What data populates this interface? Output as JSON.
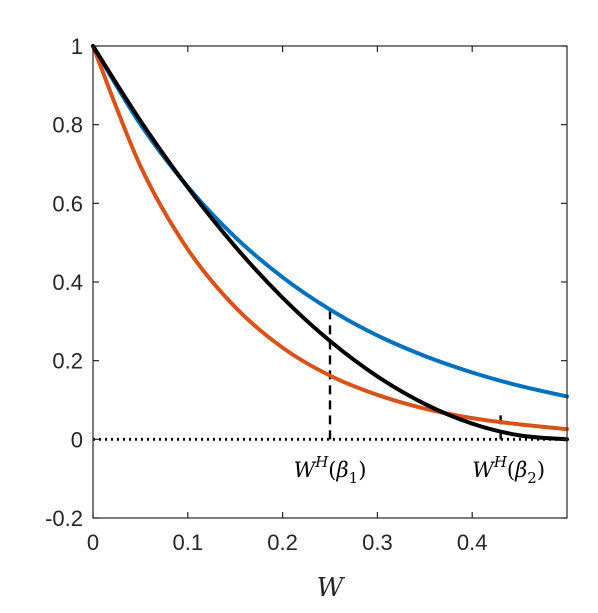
{
  "chart_data": {
    "type": "line",
    "title": "",
    "xlabel": "W",
    "ylabel": "",
    "xlim": [
      0,
      0.5
    ],
    "ylim": [
      -0.2,
      1
    ],
    "xticks": [
      0,
      0.1,
      0.2,
      0.3,
      0.4
    ],
    "xtick_labels": [
      "0",
      "0.1",
      "0.2",
      "0.3",
      "0.4"
    ],
    "yticks": [
      -0.2,
      0,
      0.2,
      0.4,
      0.6,
      0.8,
      1
    ],
    "ytick_labels": [
      "-0.2",
      "0",
      "0.2",
      "0.4",
      "0.6",
      "0.8",
      "1"
    ],
    "grid": false,
    "legend": "none",
    "series": [
      {
        "color": "#0072BD",
        "x": [
          0,
          0.05,
          0.1,
          0.15,
          0.2,
          0.25,
          0.3,
          0.35,
          0.4,
          0.45,
          0.5
        ],
        "y": [
          1,
          0.801,
          0.642,
          0.514,
          0.412,
          0.33,
          0.264,
          0.212,
          0.17,
          0.136,
          0.109
        ]
      },
      {
        "color": "#D95319",
        "x": [
          0,
          0.05,
          0.1,
          0.15,
          0.2,
          0.25,
          0.3,
          0.35,
          0.4,
          0.45,
          0.5
        ],
        "y": [
          1,
          0.695,
          0.483,
          0.336,
          0.233,
          0.162,
          0.113,
          0.078,
          0.054,
          0.038,
          0.026
        ]
      },
      {
        "color": "#000000",
        "x": [
          0,
          0.05,
          0.1,
          0.15,
          0.2,
          0.25,
          0.3,
          0.35,
          0.4,
          0.45,
          0.5
        ],
        "y": [
          1,
          0.81,
          0.64,
          0.49,
          0.36,
          0.25,
          0.16,
          0.09,
          0.04,
          0.01,
          0
        ]
      }
    ],
    "reference_lines": [
      {
        "kind": "horizontal",
        "y": 0,
        "style": "dotted",
        "color": "#000000"
      },
      {
        "kind": "vertical",
        "x": 0.25,
        "y_from": 0,
        "y_to": 0.33,
        "style": "dashed",
        "color": "#000000"
      },
      {
        "kind": "vertical",
        "x": 0.43,
        "y_from": 0,
        "y_to": 0.073,
        "style": "dashed",
        "color": "#000000"
      }
    ],
    "annotations": [
      {
        "x": 0.25,
        "base": "W",
        "sup": "H",
        "arg": "β",
        "sub": "1"
      },
      {
        "x": 0.43,
        "base": "W",
        "sup": "H",
        "arg": "β",
        "sub": "2"
      }
    ]
  }
}
